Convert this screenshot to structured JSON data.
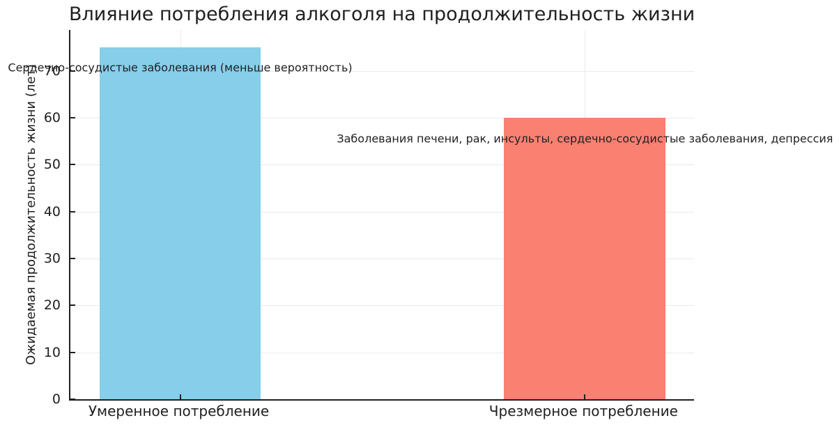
{
  "chart_data": {
    "type": "bar",
    "title": "Влияние потребления алкоголя на продолжительность жизни",
    "categories": [
      "Умеренное потребление",
      "Чрезмерное потребление"
    ],
    "values": [
      75,
      60
    ],
    "bar_colors": [
      "#87CEEB",
      "#FA8072"
    ],
    "xlabel": "",
    "ylabel": "Ожидаемая продолжительность жизни (лет)",
    "yticks": [
      0,
      10,
      20,
      30,
      40,
      50,
      60,
      70
    ],
    "ylim": [
      0,
      78.75
    ],
    "grid": true,
    "legend": null,
    "annotations": [
      {
        "text": "Сердечно-сосудистые заболевания (меньше вероятность)",
        "bar_index": 0,
        "y_value": 70.7
      },
      {
        "text": "Заболевания печени, рак, инсульты, сердечно-сосудистые заболевания, депрессия",
        "bar_index": 1,
        "y_value": 55.6
      }
    ],
    "colors": {
      "text": "#1f1f1f",
      "grid": "#ebebeb",
      "spine": "#1f1f1f",
      "background": "#ffffff"
    }
  }
}
